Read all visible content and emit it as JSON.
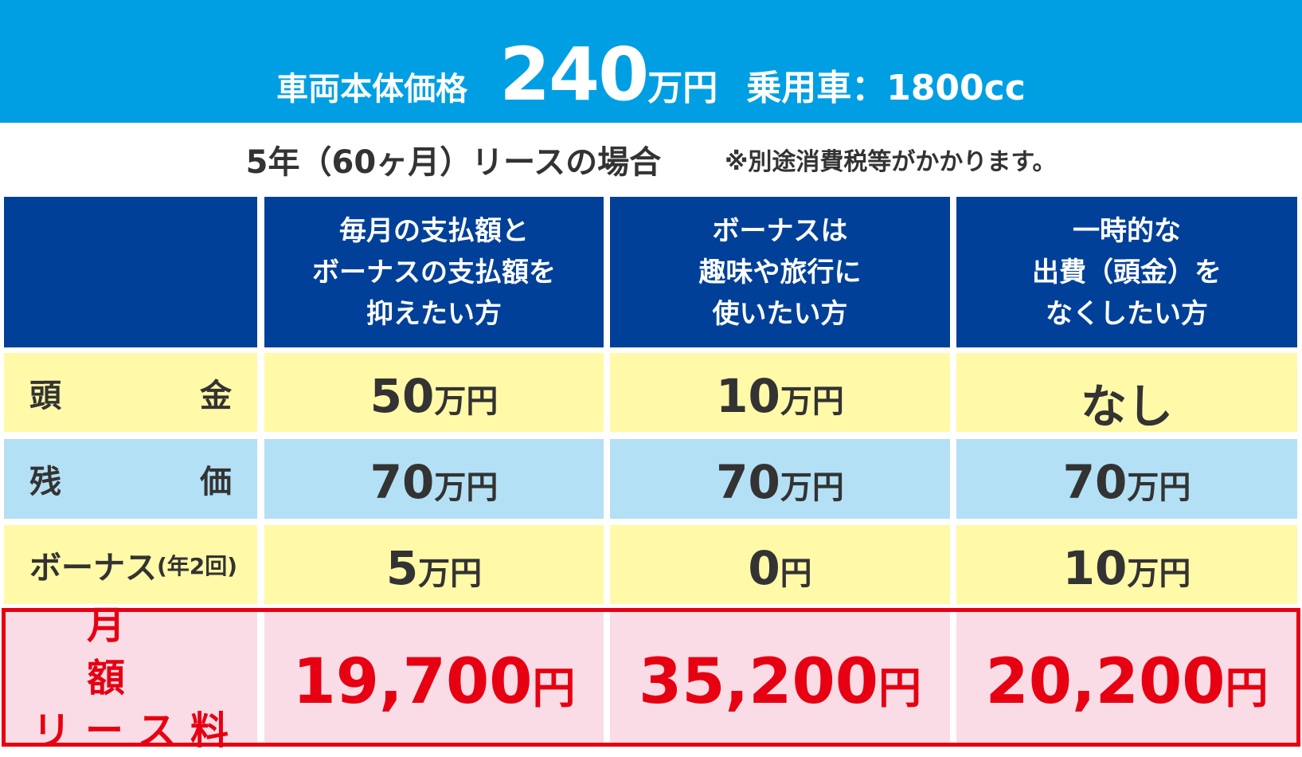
{
  "header": {
    "label": "車両本体価格",
    "price": "240",
    "price_unit": "万円",
    "vehicle": "乗用車：1800cc"
  },
  "subheader": {
    "title": "5年（60ヶ月）リースの場合",
    "note": "※別途消費税等がかかります。"
  },
  "table": {
    "columns": [
      [
        "毎月の支払額と",
        "ボーナスの支払額を",
        "抑えたい方"
      ],
      [
        "ボーナスは",
        "趣味や旅行に",
        "使いたい方"
      ],
      [
        "一時的な",
        "出費（頭金）を",
        "なくしたい方"
      ]
    ],
    "rows": [
      {
        "label": "頭 金",
        "cells": [
          {
            "amount": "50",
            "unit": "万円"
          },
          {
            "amount": "10",
            "unit": "万円"
          },
          {
            "amount": "なし"
          }
        ]
      },
      {
        "label": "残 価",
        "cells": [
          {
            "amount": "70",
            "unit": "万円"
          },
          {
            "amount": "70",
            "unit": "万円"
          },
          {
            "amount": "70",
            "unit": "万円"
          }
        ]
      },
      {
        "label": "ボーナス",
        "label_sub": "(年2回)",
        "cells": [
          {
            "amount": "5",
            "unit": "万円"
          },
          {
            "amount": "0",
            "unit": "円"
          },
          {
            "amount": "10",
            "unit": "万円"
          }
        ]
      }
    ],
    "total": {
      "label": [
        "月 額",
        "リ ー ス 料"
      ],
      "cells": [
        {
          "amount": "19,700",
          "unit": "円"
        },
        {
          "amount": "35,200",
          "unit": "円"
        },
        {
          "amount": "20,200",
          "unit": "円"
        }
      ]
    }
  }
}
